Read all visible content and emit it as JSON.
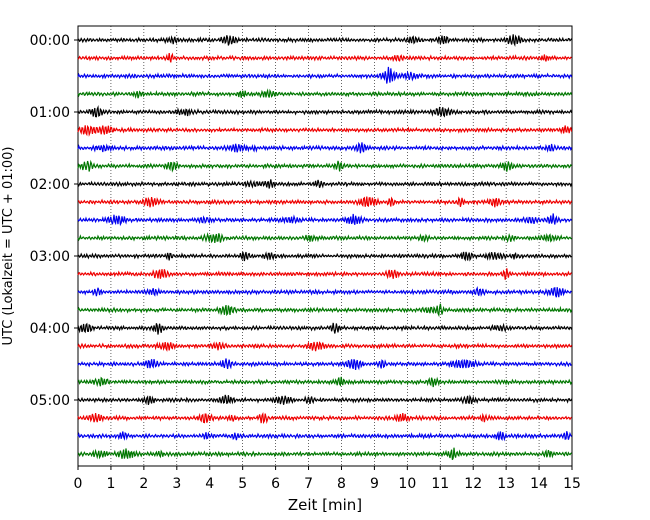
{
  "chart_data": {
    "type": "line",
    "title": "",
    "xlabel": "Zeit  [min]",
    "ylabel": "UTC (Lokalzeit = UTC + 01:00)",
    "xlim": [
      0,
      15
    ],
    "x_ticks": [
      0,
      1,
      2,
      3,
      4,
      5,
      6,
      7,
      8,
      9,
      10,
      11,
      12,
      13,
      14,
      15
    ],
    "x_tick_labels": [
      "0",
      "1",
      "2",
      "3",
      "4",
      "5",
      "6",
      "7",
      "8",
      "9",
      "10",
      "11",
      "12",
      "13",
      "14",
      "15"
    ],
    "y_tick_labels": [
      "00:00",
      "01:00",
      "02:00",
      "03:00",
      "04:00",
      "05:00"
    ],
    "grid": "vertical dotted",
    "legend": "none",
    "trace_color_cycle": [
      "#000000",
      "#ee0000",
      "#0000ee",
      "#007700"
    ],
    "traces": [
      {
        "start": "00:00"
      },
      {
        "start": "00:15"
      },
      {
        "start": "00:30"
      },
      {
        "start": "00:45"
      },
      {
        "start": "01:00"
      },
      {
        "start": "01:15"
      },
      {
        "start": "01:30"
      },
      {
        "start": "01:45"
      },
      {
        "start": "02:00"
      },
      {
        "start": "02:15"
      },
      {
        "start": "02:30"
      },
      {
        "start": "02:45"
      },
      {
        "start": "03:00"
      },
      {
        "start": "03:15"
      },
      {
        "start": "03:30"
      },
      {
        "start": "03:45"
      },
      {
        "start": "04:00"
      },
      {
        "start": "04:15"
      },
      {
        "start": "04:30"
      },
      {
        "start": "04:45"
      },
      {
        "start": "05:00"
      },
      {
        "start": "05:15"
      },
      {
        "start": "05:30"
      },
      {
        "start": "05:45"
      }
    ]
  }
}
